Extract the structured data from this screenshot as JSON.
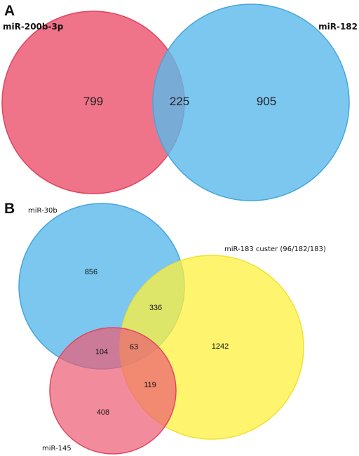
{
  "panel_a": {
    "letter": "A",
    "sets": [
      {
        "label": "miR-200b-3p",
        "color": "#ec5b74"
      },
      {
        "label": "miR-182",
        "color": "#5bb9eb"
      }
    ],
    "counts": {
      "only_200b": "799",
      "both": "225",
      "only_182": "905"
    }
  },
  "panel_b": {
    "letter": "B",
    "sets": [
      {
        "label": "miR-30b",
        "color": "#5bb9eb"
      },
      {
        "label": "miR-183 custer (96/182/183)",
        "color": "#fff03c"
      },
      {
        "label": "miR-145",
        "color": "#ec5b74"
      }
    ],
    "counts": {
      "only_30b": "856",
      "30b_183": "336",
      "only_183": "1242",
      "30b_145": "104",
      "all": "63",
      "183_145": "119",
      "only_145": "408"
    }
  }
}
